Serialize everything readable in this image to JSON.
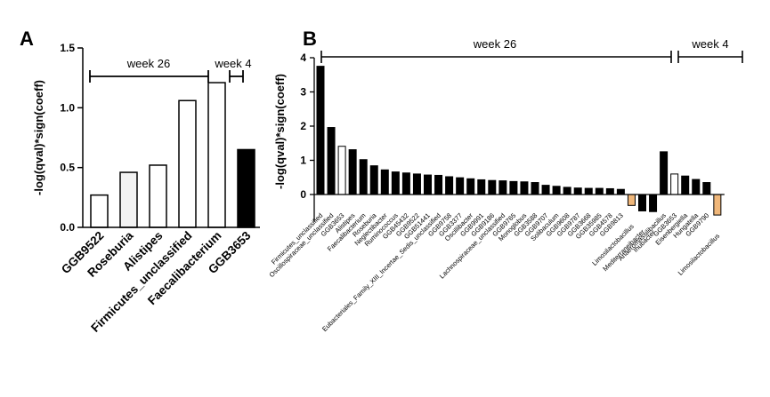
{
  "colors": {
    "black": "#000000",
    "white": "#ffffff",
    "light": "#f2f2f2",
    "orange": "#f0b77a"
  },
  "chart_data": [
    {
      "type": "bar",
      "panel": "A",
      "ylabel": "-log(qval)*sign(coeff)",
      "ylim": [
        0,
        1.5
      ],
      "yticks": [
        "0.0",
        "0.5",
        "1.0",
        "1.5"
      ],
      "categories": [
        "GGB9522",
        "Roseburia",
        "Alistipes",
        "Firmicutes_unclassified",
        "Faecalibacterium",
        "GGB3653"
      ],
      "values": [
        0.27,
        0.46,
        0.52,
        1.06,
        1.21,
        0.65
      ],
      "fills": [
        "white",
        "light",
        "white",
        "white",
        "white",
        "black"
      ],
      "groups": [
        {
          "label": "week 26",
          "from": 0,
          "to": 4
        },
        {
          "label": "week 4",
          "from": 5,
          "to": 5
        }
      ]
    },
    {
      "type": "bar",
      "panel": "B",
      "ylabel": "-log(qval)*sign(coeff)",
      "ylim": [
        -0.8,
        4
      ],
      "yticks": [
        "-1",
        "0",
        "1",
        "2",
        "3",
        "4"
      ],
      "categories": [
        "Firmicutes_unclassified",
        "Oscillospiraceae_unclassified",
        "GGB3653",
        "Alistipes",
        "Faecalibacterium",
        "Roseburia",
        "Neglectibacter",
        "Ruminococcus",
        "GGB45432",
        "GGB9522",
        "GGB51441",
        "Eubacteriales_Family_XIII_Incertae_Sedis_unclassified",
        "GGB9758",
        "GGB3377",
        "Oscillibacter",
        "GGB9991",
        "GGB9186",
        "Lachnospiraceae_unclassified",
        "GGB9765",
        "Monoglobus",
        "GGB3588",
        "GGB9707",
        "Solibaculum",
        "GGB9608",
        "GGB9787",
        "GGB3668",
        "GGB35985",
        "GGB4578",
        "GGB9813",
        "Limosilactobacillus",
        "Mediterraneibacter",
        "Ihubacter",
        "Anaeromassilibacillus",
        "GGB3653",
        "Eisenbergiella",
        "Hungatella",
        "GGB9790",
        "Limosilactobacillus"
      ],
      "values": [
        3.75,
        1.96,
        1.41,
        1.31,
        1.02,
        0.84,
        0.72,
        0.66,
        0.63,
        0.6,
        0.57,
        0.56,
        0.52,
        0.49,
        0.46,
        0.43,
        0.41,
        0.4,
        0.38,
        0.37,
        0.35,
        0.27,
        0.24,
        0.21,
        0.19,
        0.18,
        0.18,
        0.17,
        0.15,
        -0.32,
        -0.48,
        -0.5,
        1.25,
        0.6,
        0.54,
        0.44,
        0.35,
        -0.6
      ],
      "fills": [
        "black",
        "black",
        "white",
        "black",
        "black",
        "black",
        "black",
        "black",
        "black",
        "black",
        "black",
        "black",
        "black",
        "black",
        "black",
        "black",
        "black",
        "black",
        "black",
        "black",
        "black",
        "black",
        "black",
        "black",
        "black",
        "black",
        "black",
        "black",
        "black",
        "orange",
        "black",
        "black",
        "black",
        "white",
        "black",
        "black",
        "black",
        "orange"
      ],
      "groups": [
        {
          "label": "week 26",
          "from": 0,
          "to": 31
        },
        {
          "label": "week 4",
          "from": 32,
          "to": 37
        }
      ]
    }
  ]
}
